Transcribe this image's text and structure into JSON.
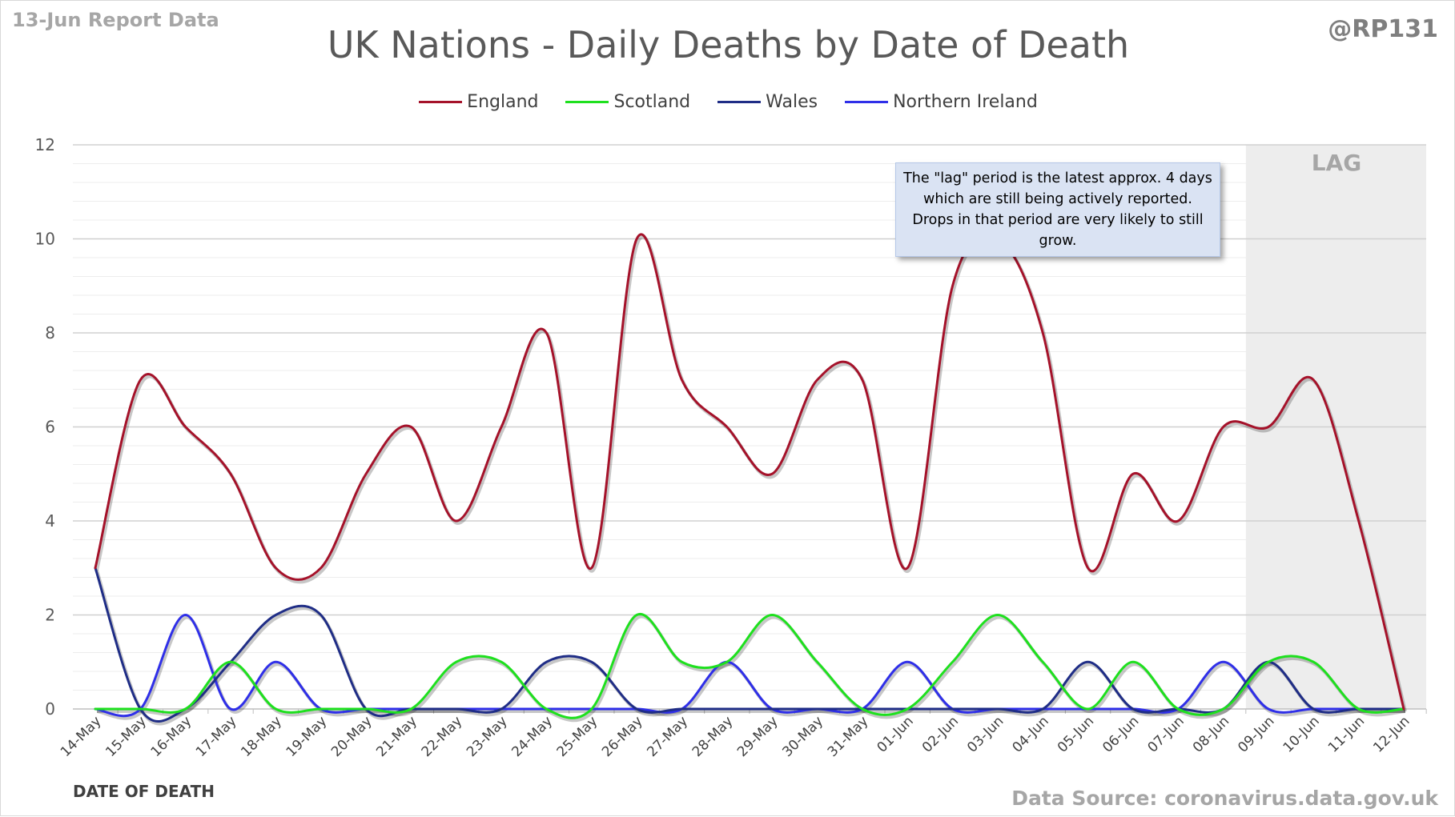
{
  "header": {
    "report_label": "13-Jun Report Data",
    "handle": "@RP131"
  },
  "footer": {
    "source": "Data Source: coronavirus.data.gov.uk"
  },
  "annotation": {
    "note": "The \"lag\" period is the latest approx. 4 days which are still being actively reported. Drops in that period are very likely to still grow.",
    "lag_label": "LAG"
  },
  "chart_data": {
    "type": "line",
    "title": "UK Nations - Daily Deaths by Date of Death",
    "xlabel": "DATE OF DEATH",
    "ylabel": "",
    "ylim": [
      0,
      12
    ],
    "y_ticks": [
      0,
      2,
      4,
      6,
      8,
      10,
      12
    ],
    "y_minor_step": 0.4,
    "grid": true,
    "legend_position": "top",
    "smoothed": true,
    "lag_region": [
      "09-Jun",
      "12-Jun"
    ],
    "categories": [
      "14-May",
      "15-May",
      "16-May",
      "17-May",
      "18-May",
      "19-May",
      "20-May",
      "21-May",
      "22-May",
      "23-May",
      "24-May",
      "25-May",
      "26-May",
      "27-May",
      "28-May",
      "29-May",
      "30-May",
      "31-May",
      "01-Jun",
      "02-Jun",
      "03-Jun",
      "04-Jun",
      "05-Jun",
      "06-Jun",
      "07-Jun",
      "08-Jun",
      "09-Jun",
      "10-Jun",
      "11-Jun",
      "12-Jun"
    ],
    "series": [
      {
        "name": "England",
        "color": "#a5122a",
        "values": [
          3,
          7,
          6,
          5,
          3,
          3,
          5,
          6,
          4,
          6,
          8,
          3,
          10,
          7,
          6,
          5,
          7,
          7,
          3,
          9,
          10,
          8,
          3,
          5,
          4,
          6,
          6,
          7,
          4,
          0
        ]
      },
      {
        "name": "Scotland",
        "color": "#1ee01e",
        "values": [
          0,
          0,
          0,
          1,
          0,
          0,
          0,
          0,
          1,
          1,
          0,
          0,
          2,
          1,
          1,
          2,
          1,
          0,
          0,
          1,
          2,
          1,
          0,
          1,
          0,
          0,
          1,
          1,
          0,
          0
        ]
      },
      {
        "name": "Wales",
        "color": "#1f2d86",
        "values": [
          3,
          0,
          0,
          1,
          2,
          2,
          0,
          0,
          0,
          0,
          1,
          1,
          0,
          0,
          0,
          0,
          0,
          0,
          0,
          0,
          0,
          0,
          1,
          0,
          0,
          0,
          1,
          0,
          0,
          0
        ]
      },
      {
        "name": "Northern Ireland",
        "color": "#2f2fe8",
        "values": [
          0,
          0,
          2,
          0,
          1,
          0,
          0,
          0,
          0,
          0,
          0,
          0,
          0,
          0,
          1,
          0,
          0,
          0,
          1,
          0,
          0,
          0,
          0,
          0,
          0,
          1,
          0,
          0,
          0,
          0
        ]
      }
    ]
  }
}
